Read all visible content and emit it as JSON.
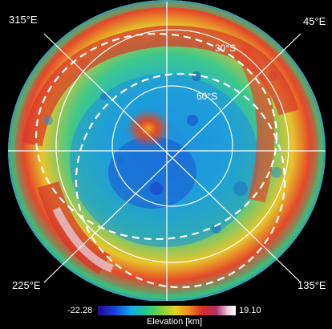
{
  "longitude_labels": {
    "top_left": "315°E",
    "top_right": "45°E",
    "bottom_left": "225°E",
    "bottom_right": "135°E"
  },
  "latitude_labels": {
    "outer": "30°S",
    "inner": "60°S"
  },
  "colorbar": {
    "min": "-22.28",
    "max": "19.10",
    "label": "Elevation [km]",
    "colors": [
      "#2b0a8c",
      "#1440d8",
      "#1aa8e8",
      "#29c98a",
      "#7bd13a",
      "#e6d326",
      "#f08a1e",
      "#d92a2a",
      "#b0306a",
      "#e8c8d8",
      "#ffffff"
    ]
  }
}
